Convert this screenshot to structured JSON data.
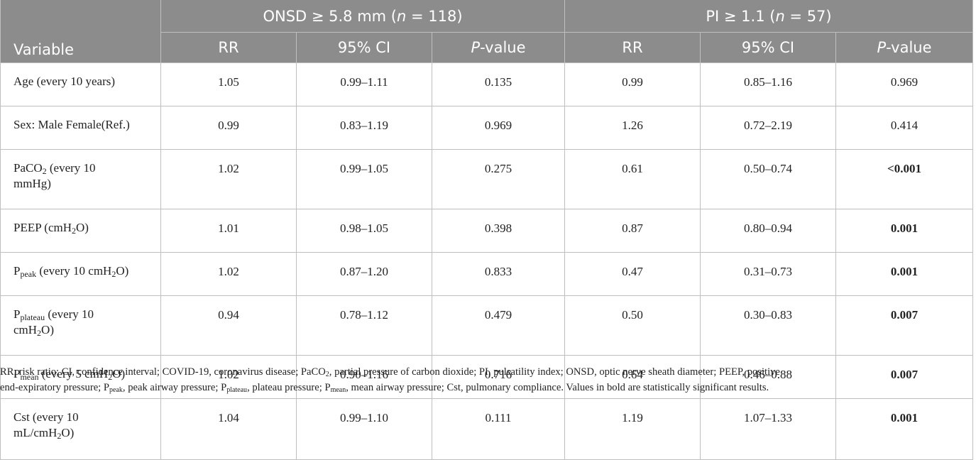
{
  "header": {
    "variable_label": "Variable",
    "group1": {
      "prefix": "ONSD ≥ 5.8 mm (",
      "n_symbol": "n",
      "suffix": " = 118)"
    },
    "group2": {
      "prefix": "PI ≥ 1.1 (",
      "n_symbol": "n",
      "suffix": " = 57)"
    },
    "rr_label": "RR",
    "ci_label": "95% CI",
    "p_label_italic": "P",
    "p_label_rest": "-value"
  },
  "rows": [
    {
      "label": {
        "main": "Age (every 10 years)"
      },
      "g1": {
        "rr": "1.05",
        "ci": "0.99–1.11",
        "p": "0.135",
        "p_bold": false
      },
      "g2": {
        "rr": "0.99",
        "ci": "0.85–1.16",
        "p": "0.969",
        "p_bold": false
      }
    },
    {
      "label": {
        "main": "Sex: Male Female(Ref.)"
      },
      "g1": {
        "rr": "0.99",
        "ci": "0.83–1.19",
        "p": "0.969",
        "p_bold": false
      },
      "g2": {
        "rr": "1.26",
        "ci": "0.72–2.19",
        "p": "0.414",
        "p_bold": false
      }
    },
    {
      "label": {
        "pre": "PaCO",
        "sub": "2",
        "post": " (every 10",
        "line2": "mmHg)"
      },
      "g1": {
        "rr": "1.02",
        "ci": "0.99–1.05",
        "p": "0.275",
        "p_bold": false
      },
      "g2": {
        "rr": "0.61",
        "ci": "0.50–0.74",
        "p": "<0.001",
        "p_bold": true
      }
    },
    {
      "label": {
        "pre": "PEEP (cmH",
        "sub": "2",
        "post": "O)"
      },
      "g1": {
        "rr": "1.01",
        "ci": "0.98–1.05",
        "p": "0.398",
        "p_bold": false
      },
      "g2": {
        "rr": "0.87",
        "ci": "0.80–0.94",
        "p": "0.001",
        "p_bold": true
      }
    },
    {
      "label": {
        "pre": "P",
        "sub": "peak",
        "post": " (every 10 cmH",
        "sub2": "2",
        "post2": "O)"
      },
      "g1": {
        "rr": "1.02",
        "ci": "0.87–1.20",
        "p": "0.833",
        "p_bold": false
      },
      "g2": {
        "rr": "0.47",
        "ci": "0.31–0.73",
        "p": "0.001",
        "p_bold": true
      }
    },
    {
      "label": {
        "pre": "P",
        "sub": "plateau",
        "post": " (every 10",
        "line2_pre": "cmH",
        "line2_sub": "2",
        "line2_post": "O)"
      },
      "g1": {
        "rr": "0.94",
        "ci": "0.78–1.12",
        "p": "0.479",
        "p_bold": false
      },
      "g2": {
        "rr": "0.50",
        "ci": "0.30–0.83",
        "p": "0.007",
        "p_bold": true
      }
    },
    {
      "label": {
        "pre": "P",
        "sub": "mean",
        "post": " (every 5 cmH",
        "sub2": "2",
        "post2": "O)"
      },
      "g1": {
        "rr": "1.02",
        "ci": "0.90–1.16",
        "p": "0.716",
        "p_bold": false
      },
      "g2": {
        "rr": "0.64",
        "ci": "0.46–0.88",
        "p": "0.007",
        "p_bold": true
      }
    },
    {
      "label": {
        "main": "Cst (every 10",
        "line2_pre": "mL/cmH",
        "line2_sub": "2",
        "line2_post": "O)"
      },
      "g1": {
        "rr": "1.04",
        "ci": "0.99–1.10",
        "p": "0.111",
        "p_bold": false
      },
      "g2": {
        "rr": "1.19",
        "ci": "1.07–1.33",
        "p": "0.001",
        "p_bold": true
      }
    }
  ],
  "footnote": {
    "line1_a": "RR, risk ratio; CI, confidence interval; COVID-19, coronavirus disease; PaCO",
    "line1_sub1": "2",
    "line1_b": ", partial pressure of carbon dioxide; PI, pulsatility index; ONSD, optic nerve sheath diameter; PEEP, positive",
    "line2_a": "end-expiratory pressure; P",
    "line2_sub1": "peak",
    "line2_b": ", peak airway pressure; P",
    "line2_sub2": "plateau",
    "line2_c": ", plateau pressure; P",
    "line2_sub3": "mean",
    "line2_d": ", mean airway pressure; Cst, pulmonary compliance. Values in bold are statistically significant results."
  }
}
